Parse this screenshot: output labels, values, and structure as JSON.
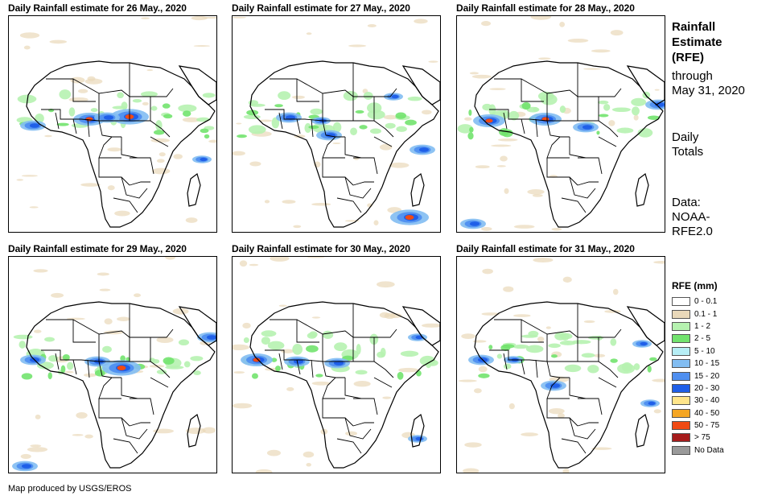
{
  "panels": [
    {
      "title": "Daily Rainfall estimate for 26 May., 2020",
      "variant": 0
    },
    {
      "title": "Daily Rainfall estimate for 27 May., 2020",
      "variant": 1
    },
    {
      "title": "Daily Rainfall estimate for 28 May., 2020",
      "variant": 2
    },
    {
      "title": "Daily Rainfall estimate for 29 May., 2020",
      "variant": 3
    },
    {
      "title": "Daily Rainfall estimate for 30 May., 2020",
      "variant": 4
    },
    {
      "title": "Daily Rainfall estimate for 31 May., 2020",
      "variant": 5
    }
  ],
  "sidebar": {
    "title_line1": "Rainfall",
    "title_line2": "Estimate",
    "title_line3": "(RFE)",
    "through_line1": "through",
    "through_line2": "May 31, 2020",
    "period_line1": "Daily",
    "period_line2": "Totals",
    "source_line1": "Data:",
    "source_line2": "NOAA-",
    "source_line3": "RFE2.0"
  },
  "legend": {
    "title": "RFE (mm)",
    "items": [
      {
        "label": "0 - 0.1",
        "color": "#ffffff"
      },
      {
        "label": "0.1 - 1",
        "color": "#e9d8b9"
      },
      {
        "label": "1 - 2",
        "color": "#b6f2b0"
      },
      {
        "label": "2 - 5",
        "color": "#72e36e"
      },
      {
        "label": "5 - 10",
        "color": "#b6eef5"
      },
      {
        "label": "10 - 15",
        "color": "#82bdf2"
      },
      {
        "label": "15 - 20",
        "color": "#4f8ff0"
      },
      {
        "label": "20 - 30",
        "color": "#1f5fe8"
      },
      {
        "label": "30 - 40",
        "color": "#ffe58a"
      },
      {
        "label": "40 - 50",
        "color": "#f5a623"
      },
      {
        "label": "50 - 75",
        "color": "#f04a14"
      },
      {
        "label": "> 75",
        "color": "#a61c1c"
      },
      {
        "label": "No Data",
        "color": "#9a9a9a"
      }
    ]
  },
  "credit": "Map produced by USGS/EROS"
}
